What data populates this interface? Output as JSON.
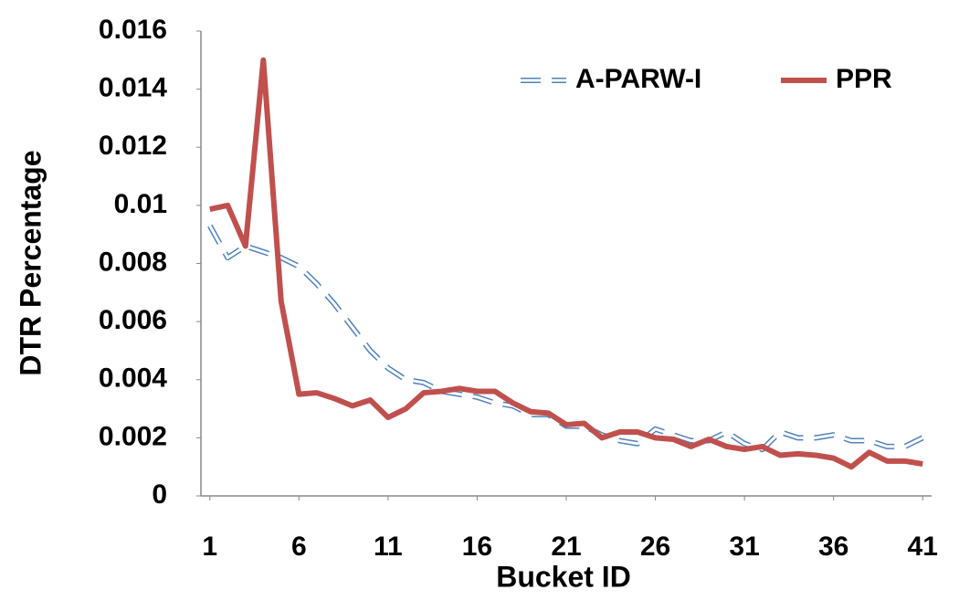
{
  "chart_data": {
    "type": "line",
    "y_label": "DTR Percentage",
    "x_label": "Bucket ID",
    "x": [
      1,
      2,
      3,
      4,
      5,
      6,
      7,
      8,
      9,
      10,
      11,
      12,
      13,
      14,
      15,
      16,
      17,
      18,
      19,
      20,
      21,
      22,
      23,
      24,
      25,
      26,
      27,
      28,
      29,
      30,
      31,
      32,
      33,
      34,
      35,
      36,
      37,
      38,
      39,
      40,
      41
    ],
    "xlim": [
      0.5,
      41.5
    ],
    "xticks": [
      1,
      6,
      11,
      16,
      21,
      26,
      31,
      36,
      41
    ],
    "ylim": [
      0,
      0.016
    ],
    "yticks": [
      0,
      0.002,
      0.004,
      0.006,
      0.008,
      0.01,
      0.012,
      0.014,
      0.016
    ],
    "legend": "upper-right",
    "series": [
      {
        "name": "A-PARW-I",
        "color": "#4f81bd",
        "linestyle": "dashed",
        "values": [
          0.0093,
          0.0082,
          0.0086,
          0.0084,
          0.0082,
          0.0079,
          0.0073,
          0.0066,
          0.0058,
          0.005,
          0.0044,
          0.004,
          0.0039,
          0.0036,
          0.0035,
          0.0034,
          0.0032,
          0.0031,
          0.0028,
          0.0028,
          0.0024,
          0.0024,
          0.0021,
          0.0019,
          0.0018,
          0.0023,
          0.0021,
          0.0019,
          0.0019,
          0.0022,
          0.0018,
          0.0016,
          0.0022,
          0.002,
          0.002,
          0.0021,
          0.0019,
          0.0019,
          0.0017,
          0.0017,
          0.002
        ]
      },
      {
        "name": "PPR",
        "color": "#c0504d",
        "linestyle": "solid",
        "values": [
          0.00987,
          0.01,
          0.0086,
          0.015,
          0.0067,
          0.0035,
          0.00355,
          0.00335,
          0.0031,
          0.0033,
          0.0027,
          0.003,
          0.00355,
          0.0036,
          0.0037,
          0.0036,
          0.0036,
          0.0032,
          0.0029,
          0.00285,
          0.00245,
          0.0025,
          0.002,
          0.0022,
          0.0022,
          0.002,
          0.00195,
          0.0017,
          0.00195,
          0.0017,
          0.0016,
          0.0017,
          0.0014,
          0.00145,
          0.0014,
          0.0013,
          0.001,
          0.0015,
          0.0012,
          0.0012,
          0.0011
        ]
      }
    ]
  }
}
